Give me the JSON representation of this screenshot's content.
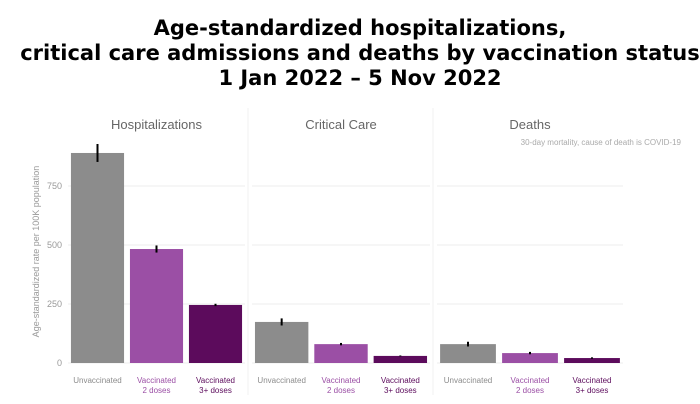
{
  "title": "Age-standardized hospitalizations,\ncritical care admissions and deaths by vaccination status\n1 Jan 2022 – 5 Nov 2022",
  "chart_data": [
    {
      "type": "bar",
      "title": "Hospitalizations",
      "y_label": "Age-standardized rate per 100K population",
      "categories": [
        "Unvaccinated",
        "Vaccinated\n2 doses",
        "Vaccinated\n3+ doses"
      ],
      "values": [
        890,
        483,
        246
      ],
      "errors": [
        38,
        15,
        5
      ],
      "colors": [
        "#8c8c8c",
        "#9b4fa5",
        "#5c0b5c"
      ],
      "ylim": [
        0,
        945
      ],
      "yticks": [
        0,
        250,
        500,
        750
      ],
      "grid": true
    },
    {
      "type": "bar",
      "title": "Critical Care",
      "categories": [
        "Unvaccinated",
        "Vaccinated\n2 doses",
        "Vaccinated\n3+ doses"
      ],
      "values": [
        174,
        80,
        30
      ],
      "errors": [
        15,
        5,
        2
      ],
      "colors": [
        "#8c8c8c",
        "#9b4fa5",
        "#5c0b5c"
      ],
      "ylim": [
        0,
        945
      ],
      "yticks": [
        0,
        250,
        500,
        750
      ],
      "grid": true
    },
    {
      "type": "bar",
      "title": "Deaths",
      "annotation": "30-day mortality, cause of death is COVID-19",
      "categories": [
        "Unvaccinated",
        "Vaccinated\n2 doses",
        "Vaccinated\n3+ doses"
      ],
      "values": [
        80,
        42,
        21
      ],
      "errors": [
        10,
        5,
        3
      ],
      "colors": [
        "#8c8c8c",
        "#9b4fa5",
        "#5c0b5c"
      ],
      "ylim": [
        0,
        945
      ],
      "yticks": [
        0,
        250,
        500,
        750
      ],
      "grid": true
    }
  ]
}
